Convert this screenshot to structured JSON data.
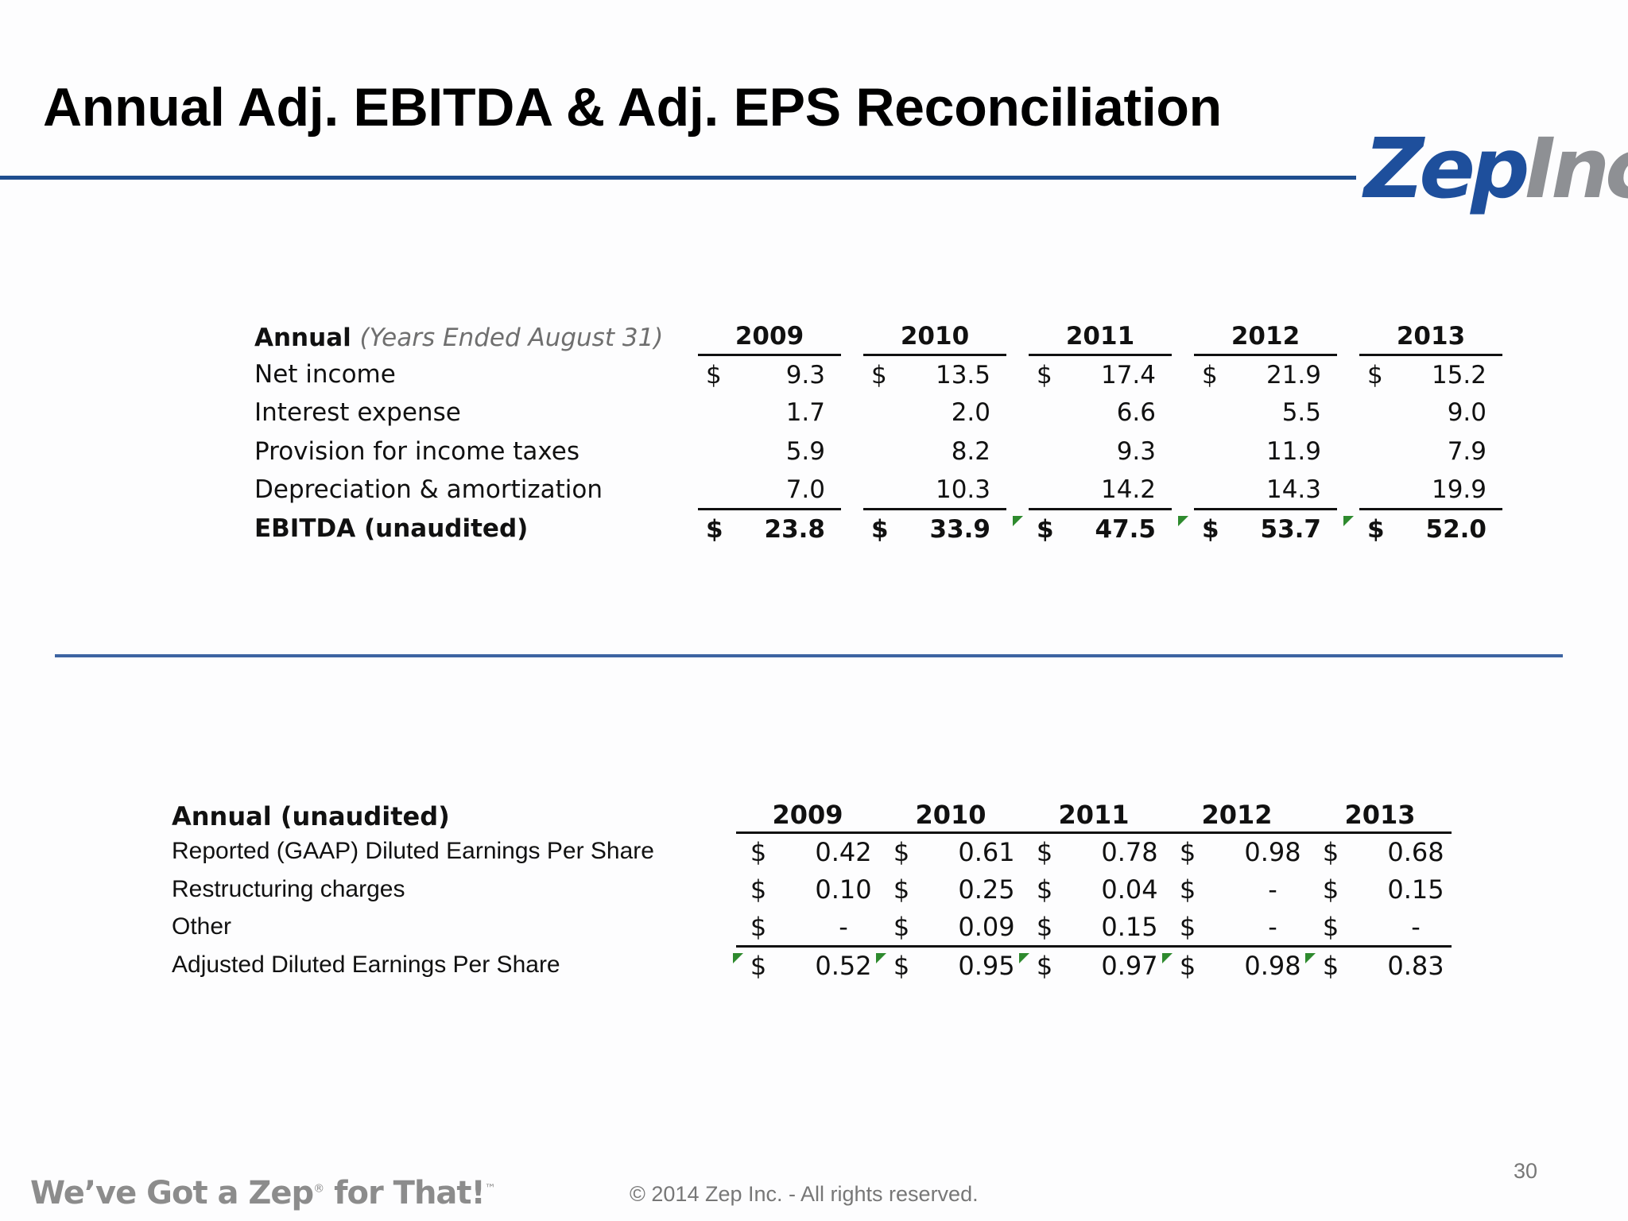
{
  "title": "Annual Adj. EBITDA & Adj. EPS Reconciliation",
  "logo": {
    "zep": "Zep",
    "inc": "Inc"
  },
  "ebitda_table": {
    "header_bold": "Annual",
    "header_sub": "(Years Ended August 31)",
    "years": [
      "2009",
      "2010",
      "2011",
      "2012",
      "2013"
    ],
    "rows": [
      {
        "label": "Net income",
        "values": [
          "9.3",
          "13.5",
          "17.4",
          "21.9",
          "15.2"
        ]
      },
      {
        "label": "Interest expense",
        "values": [
          "1.7",
          "2.0",
          "6.6",
          "5.5",
          "9.0"
        ]
      },
      {
        "label": "Provision for income taxes",
        "values": [
          "5.9",
          "8.2",
          "9.3",
          "11.9",
          "7.9"
        ]
      },
      {
        "label": "Depreciation & amortization",
        "values": [
          "7.0",
          "10.3",
          "14.2",
          "14.3",
          "19.9"
        ]
      }
    ],
    "total": {
      "label": "EBITDA (unaudited)",
      "values": [
        "23.8",
        "33.9",
        "47.5",
        "53.7",
        "52.0"
      ]
    },
    "currency": "$"
  },
  "eps_table": {
    "header": "Annual (unaudited)",
    "years": [
      "2009",
      "2010",
      "2011",
      "2012",
      "2013"
    ],
    "rows": [
      {
        "label": "Reported (GAAP) Diluted Earnings Per Share",
        "values": [
          "0.42",
          "0.61",
          "0.78",
          "0.98",
          "0.68"
        ]
      },
      {
        "label": "Restructuring charges",
        "values": [
          "0.10",
          "0.25",
          "0.04",
          "-",
          "0.15"
        ]
      },
      {
        "label": "Other",
        "values": [
          "-",
          "0.09",
          "0.15",
          "-",
          "-"
        ]
      }
    ],
    "total": {
      "label": "Adjusted Diluted Earnings Per Share",
      "values": [
        "0.52",
        "0.95",
        "0.97",
        "0.98",
        "0.83"
      ]
    },
    "currency": "$"
  },
  "footer": {
    "tagline": "We’ve Got a Zep",
    "tagline_reg": "®",
    "tagline_end": " for That!",
    "tagline_tm": "™",
    "copyright": "© 2014  Zep Inc. - All rights reserved.",
    "page_number": "30"
  },
  "colors": {
    "accent_blue": "#1f4e8f",
    "logo_blue": "#1e4f9c",
    "logo_gray": "#8e9094",
    "note_green": "#2e8a2e"
  }
}
